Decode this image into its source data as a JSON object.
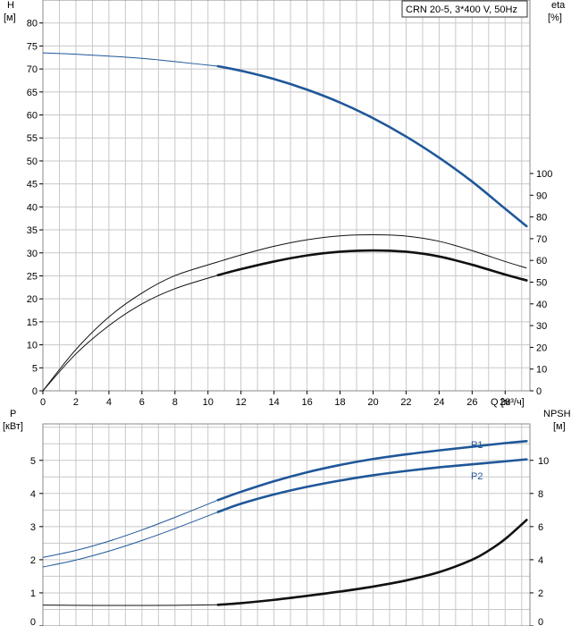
{
  "colors": {
    "head": "#1f5799",
    "efficiency": "#111111",
    "power_p1": "#1f5799",
    "power_p2": "#1f5799",
    "npsh": "#111111",
    "grid": "#c8c8c8"
  },
  "legend_box": "CRN 20-5, 3*400 V, 50Hz",
  "top_chart": {
    "y_left_label": [
      "H",
      "[м]"
    ],
    "y_right_label": [
      "eta",
      "[%]"
    ],
    "x_label": "Q [м³/ч]",
    "x_ticks": [
      "0",
      "2",
      "4",
      "6",
      "8",
      "10",
      "12",
      "14",
      "16",
      "18",
      "20",
      "22",
      "24",
      "26",
      "28"
    ],
    "y_left_ticks": [
      "0",
      "5",
      "10",
      "15",
      "20",
      "25",
      "30",
      "35",
      "40",
      "45",
      "50",
      "55",
      "60",
      "65",
      "70",
      "75",
      "80"
    ],
    "y_right_ticks": [
      "0",
      "10",
      "20",
      "30",
      "40",
      "50",
      "60",
      "70",
      "80",
      "90",
      "100"
    ]
  },
  "bottom_chart": {
    "y_left_label": [
      "P",
      "[кВт]"
    ],
    "y_right_label": [
      "NPSH",
      "[м]"
    ],
    "y_left_ticks": [
      "0",
      "1",
      "2",
      "3",
      "4",
      "5"
    ],
    "y_right_ticks": [
      "0",
      "2",
      "4",
      "6",
      "8",
      "10"
    ],
    "series_labels": {
      "p1": "P1",
      "p2": "P2"
    }
  },
  "chart_data": [
    {
      "type": "line",
      "title": "CRN 20-5, 3*400 V, 50Hz",
      "xlabel": "Q [м³/ч]",
      "ylabel": "H [м]",
      "y2label": "eta [%]",
      "xlim": [
        0,
        29.5
      ],
      "ylim": [
        0,
        85
      ],
      "y2lim": [
        0,
        100
      ],
      "grid": true,
      "series": [
        {
          "key": "head",
          "axis": "left",
          "x": [
            0,
            2,
            4,
            6,
            8,
            10.6,
            12,
            14,
            16,
            18,
            20,
            22,
            24,
            26,
            28,
            29.3
          ],
          "values": [
            73.5,
            73.2,
            72.8,
            72.3,
            71.6,
            70.6,
            69.6,
            67.8,
            65.5,
            62.7,
            59.3,
            55.3,
            50.7,
            45.5,
            39.6,
            35.8
          ],
          "thin_until": 10.6
        },
        {
          "key": "eta_pump",
          "axis": "right",
          "x": [
            0,
            2,
            4,
            6,
            8,
            10.6,
            12,
            14,
            16,
            18,
            20,
            22,
            24,
            26,
            28,
            29.3
          ],
          "values": [
            0,
            19,
            34,
            45,
            53,
            59.3,
            62.5,
            66.5,
            69.5,
            71.3,
            71.8,
            71.2,
            68.8,
            64.5,
            59.5,
            56.5
          ],
          "thin_until": 30
        },
        {
          "key": "eta_total",
          "axis": "right",
          "x": [
            0,
            2,
            4,
            6,
            8,
            10.6,
            12,
            14,
            16,
            18,
            20,
            22,
            24,
            26,
            28,
            29.3
          ],
          "values": [
            0,
            17,
            30,
            40,
            47,
            53.2,
            56,
            59.5,
            62.3,
            64,
            64.6,
            64,
            61.8,
            58,
            53.5,
            50.8
          ],
          "thin_until": 10.6
        }
      ]
    },
    {
      "type": "line",
      "xlabel": "Q [м³/ч]",
      "ylabel": "P [кВт]",
      "y2label": "NPSH [м]",
      "xlim": [
        0,
        29.5
      ],
      "ylim": [
        0,
        6.1
      ],
      "y2lim": [
        0,
        12.2
      ],
      "grid": true,
      "series": [
        {
          "key": "p1",
          "name": "P1",
          "axis": "left",
          "x": [
            0,
            2,
            4,
            6,
            8,
            10.6,
            12,
            14,
            16,
            18,
            20,
            22,
            24,
            26,
            28,
            29.3
          ],
          "values": [
            2.07,
            2.28,
            2.56,
            2.9,
            3.28,
            3.8,
            4.05,
            4.37,
            4.64,
            4.86,
            5.04,
            5.18,
            5.3,
            5.41,
            5.52,
            5.58
          ],
          "thin_until": 10.6
        },
        {
          "key": "p2",
          "name": "P2",
          "axis": "left",
          "x": [
            0,
            2,
            4,
            6,
            8,
            10.6,
            12,
            14,
            16,
            18,
            20,
            22,
            24,
            26,
            28,
            29.3
          ],
          "values": [
            1.78,
            1.99,
            2.26,
            2.58,
            2.94,
            3.44,
            3.69,
            3.97,
            4.2,
            4.39,
            4.55,
            4.68,
            4.79,
            4.88,
            4.97,
            5.03
          ],
          "thin_until": 10.6
        },
        {
          "key": "npsh",
          "axis": "right",
          "x": [
            0,
            2,
            4,
            6,
            8,
            10.6,
            12,
            14,
            16,
            18,
            20,
            22,
            24,
            26,
            27,
            28,
            29.3
          ],
          "values": [
            1.26,
            1.25,
            1.24,
            1.24,
            1.25,
            1.28,
            1.38,
            1.58,
            1.82,
            2.08,
            2.38,
            2.75,
            3.25,
            4.0,
            4.55,
            5.25,
            6.4
          ],
          "thin_until": 10.6
        }
      ]
    }
  ]
}
